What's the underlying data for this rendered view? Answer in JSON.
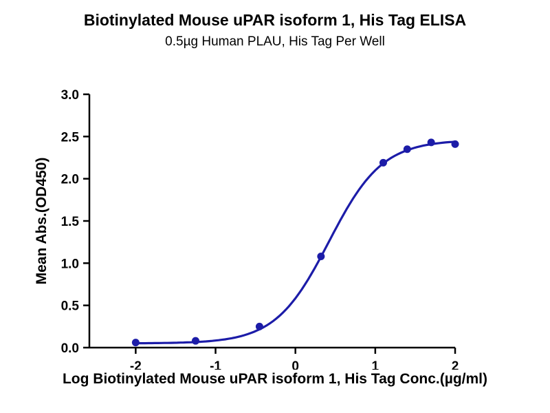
{
  "chart_data": {
    "type": "line",
    "title": "Biotinylated Mouse uPAR isoform 1, His Tag ELISA",
    "subtitle": "0.5µg Human PLAU, His Tag Per Well",
    "xlabel": "Log Biotinylated Mouse uPAR isoform 1, His Tag Conc.(µg/ml)",
    "ylabel": "Mean Abs.(OD450)",
    "xlim": [
      -2.58,
      2
    ],
    "ylim": [
      0,
      3
    ],
    "x_ticks": [
      -2,
      -1,
      0,
      1,
      2
    ],
    "y_ticks": [
      0,
      0.5,
      1,
      1.5,
      2,
      2.5,
      3
    ],
    "points": [
      {
        "x": -2.0,
        "y": 0.06
      },
      {
        "x": -1.25,
        "y": 0.08
      },
      {
        "x": -0.45,
        "y": 0.25
      },
      {
        "x": 0.32,
        "y": 1.08
      },
      {
        "x": 1.1,
        "y": 2.19
      },
      {
        "x": 1.4,
        "y": 2.35
      },
      {
        "x": 1.7,
        "y": 2.43
      },
      {
        "x": 2.0,
        "y": 2.41
      }
    ],
    "fit_4pl": {
      "bottom": 0.05,
      "top": 2.46,
      "logEC50": 0.42,
      "hill": 1.3
    },
    "curve_color": "#1C1CA8",
    "marker_color": "#1C1CA8",
    "axis_color": "#000000",
    "grid": false,
    "legend": null
  }
}
